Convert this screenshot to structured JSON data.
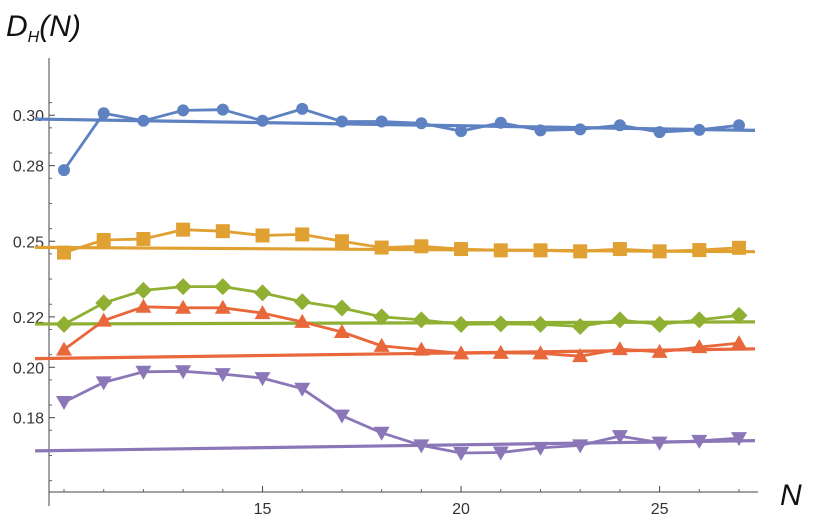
{
  "chart_data": {
    "type": "line",
    "ylabel": {
      "main": "D",
      "sub": "H",
      "rest": "(N)"
    },
    "xlabel": "N",
    "xlim": [
      9.7,
      27.4
    ],
    "ylim": [
      0.15,
      0.311
    ],
    "x_ticks": [
      15,
      20,
      25
    ],
    "y_ticks": [
      0.18,
      0.2,
      0.22,
      0.25,
      0.28,
      0.3
    ],
    "y_tick_labels": [
      "0.18",
      "0.20",
      "0.22",
      "0.25",
      "0.28",
      "0.30"
    ],
    "grid": false,
    "series": [
      {
        "color": "#5e81c2",
        "marker": "circle",
        "x": [
          10,
          11,
          12,
          13,
          14,
          15,
          16,
          17,
          18,
          19,
          20,
          21,
          22,
          23,
          24,
          25,
          26,
          27
        ],
        "y": [
          0.2782,
          0.3008,
          0.2978,
          0.3019,
          0.3022,
          0.2978,
          0.3025,
          0.2975,
          0.2975,
          0.2968,
          0.2937,
          0.297,
          0.294,
          0.2944,
          0.296,
          0.2933,
          0.2942,
          0.296
        ],
        "fit": [
          0.2983,
          0.2941
        ]
      },
      {
        "color": "#e0a032",
        "marker": "square",
        "x": [
          10,
          11,
          12,
          13,
          14,
          15,
          16,
          17,
          18,
          19,
          20,
          21,
          22,
          23,
          24,
          25,
          26,
          27
        ],
        "y": [
          0.2455,
          0.2505,
          0.2509,
          0.2546,
          0.254,
          0.2523,
          0.2527,
          0.25,
          0.2475,
          0.248,
          0.2469,
          0.2464,
          0.2464,
          0.246,
          0.2469,
          0.246,
          0.2465,
          0.2474
        ],
        "fit": [
          0.2475,
          0.2459
        ]
      },
      {
        "color": "#8fb032",
        "marker": "diamond",
        "x": [
          10,
          11,
          12,
          13,
          14,
          15,
          16,
          17,
          18,
          19,
          20,
          21,
          22,
          23,
          24,
          25,
          26,
          27
        ],
        "y": [
          0.217,
          0.2255,
          0.2305,
          0.232,
          0.232,
          0.2295,
          0.226,
          0.2235,
          0.22,
          0.2188,
          0.217,
          0.2172,
          0.217,
          0.2162,
          0.2188,
          0.217,
          0.2188,
          0.2206
        ],
        "fit": [
          0.2172,
          0.218
        ]
      },
      {
        "color": "#e8673b",
        "marker": "triangle-up",
        "x": [
          10,
          11,
          12,
          13,
          14,
          15,
          16,
          17,
          18,
          19,
          20,
          21,
          22,
          23,
          24,
          25,
          26,
          27
        ],
        "y": [
          0.207,
          0.2185,
          0.224,
          0.2236,
          0.2236,
          0.2215,
          0.218,
          0.214,
          0.2085,
          0.207,
          0.2055,
          0.2057,
          0.2055,
          0.2044,
          0.2072,
          0.2061,
          0.208,
          0.2096
        ],
        "fit": [
          0.2036,
          0.2072
        ]
      },
      {
        "color": "#8b77b8",
        "marker": "triangle-down",
        "x": [
          10,
          11,
          12,
          13,
          14,
          15,
          16,
          17,
          18,
          19,
          20,
          21,
          22,
          23,
          24,
          25,
          26,
          27
        ],
        "y": [
          0.1862,
          0.194,
          0.1982,
          0.1984,
          0.1973,
          0.1957,
          0.1915,
          0.1808,
          0.174,
          0.169,
          0.166,
          0.1662,
          0.168,
          0.169,
          0.1727,
          0.1701,
          0.1708,
          0.1719
        ],
        "fit": [
          0.167,
          0.1708
        ]
      }
    ]
  }
}
